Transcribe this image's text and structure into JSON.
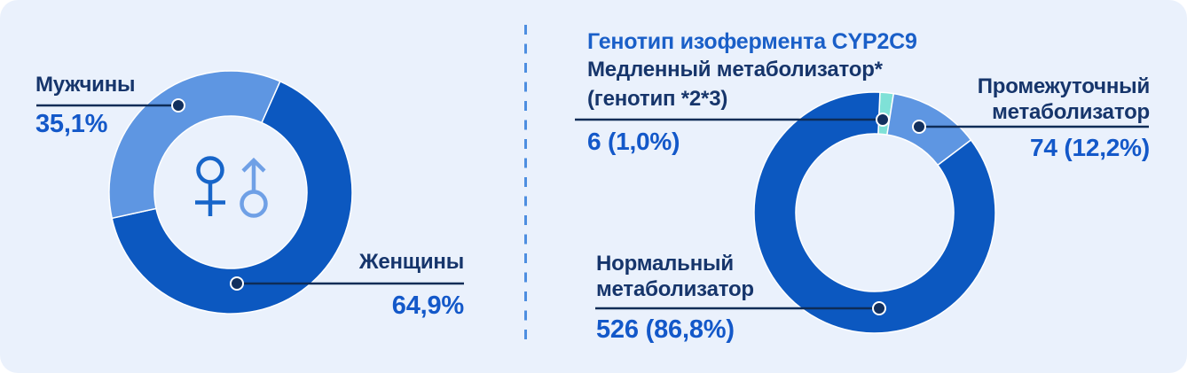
{
  "card": {
    "background": "#EAF1FC",
    "divider_color": "#4D8EE0",
    "leader_line_color": "#0E2C57",
    "dot_color": "#12305E",
    "label_color": "#16356B",
    "value_color": "#1358C9",
    "icon_female_color": "#1765C9",
    "icon_male_color": "#6FA0E6"
  },
  "left_chart": {
    "male_label": "Мужчины",
    "male_value": "35,1%",
    "female_label": "Женщины",
    "female_value": "64,9%"
  },
  "right_chart": {
    "title": "Генотип изофермента CYP2C9",
    "slow_label_line1": "Медленный метаболизатор*",
    "slow_label_line2": "(генотип *2*3)",
    "slow_value": "6 (1,0%)",
    "intermediate_label_line1": "Промежуточный",
    "intermediate_label_line2": "метаболизатор",
    "intermediate_value": "74 (12,2%)",
    "normal_label_line1": "Нормальный",
    "normal_label_line2": "метаболизатор",
    "normal_value": "526 (86,8%)"
  },
  "chart_data": [
    {
      "type": "pie",
      "subtype": "donut",
      "title": "",
      "labels": [
        "Мужчины",
        "Женщины"
      ],
      "values": [
        35.1,
        64.9
      ],
      "value_labels": [
        "35,1%",
        "64,9%"
      ],
      "colors": [
        "#5E96E2",
        "#0C58C0"
      ],
      "center_icons": [
        "female-symbol",
        "male-symbol"
      ],
      "legend_position": "callout-labels"
    },
    {
      "type": "pie",
      "subtype": "donut",
      "title": "Генотип изофермента CYP2C9",
      "labels": [
        "Медленный метаболизатор* (генотип *2*3)",
        "Промежуточный метаболизатор",
        "Нормальный метаболизатор"
      ],
      "counts": [
        6,
        74,
        526
      ],
      "values": [
        1.0,
        12.2,
        86.8
      ],
      "value_labels": [
        "6 (1,0%)",
        "74 (12,2%)",
        "526 (86,8%)"
      ],
      "colors": [
        "#7FE1D7",
        "#5E96E2",
        "#0C58C0"
      ],
      "legend_position": "callout-labels"
    }
  ]
}
